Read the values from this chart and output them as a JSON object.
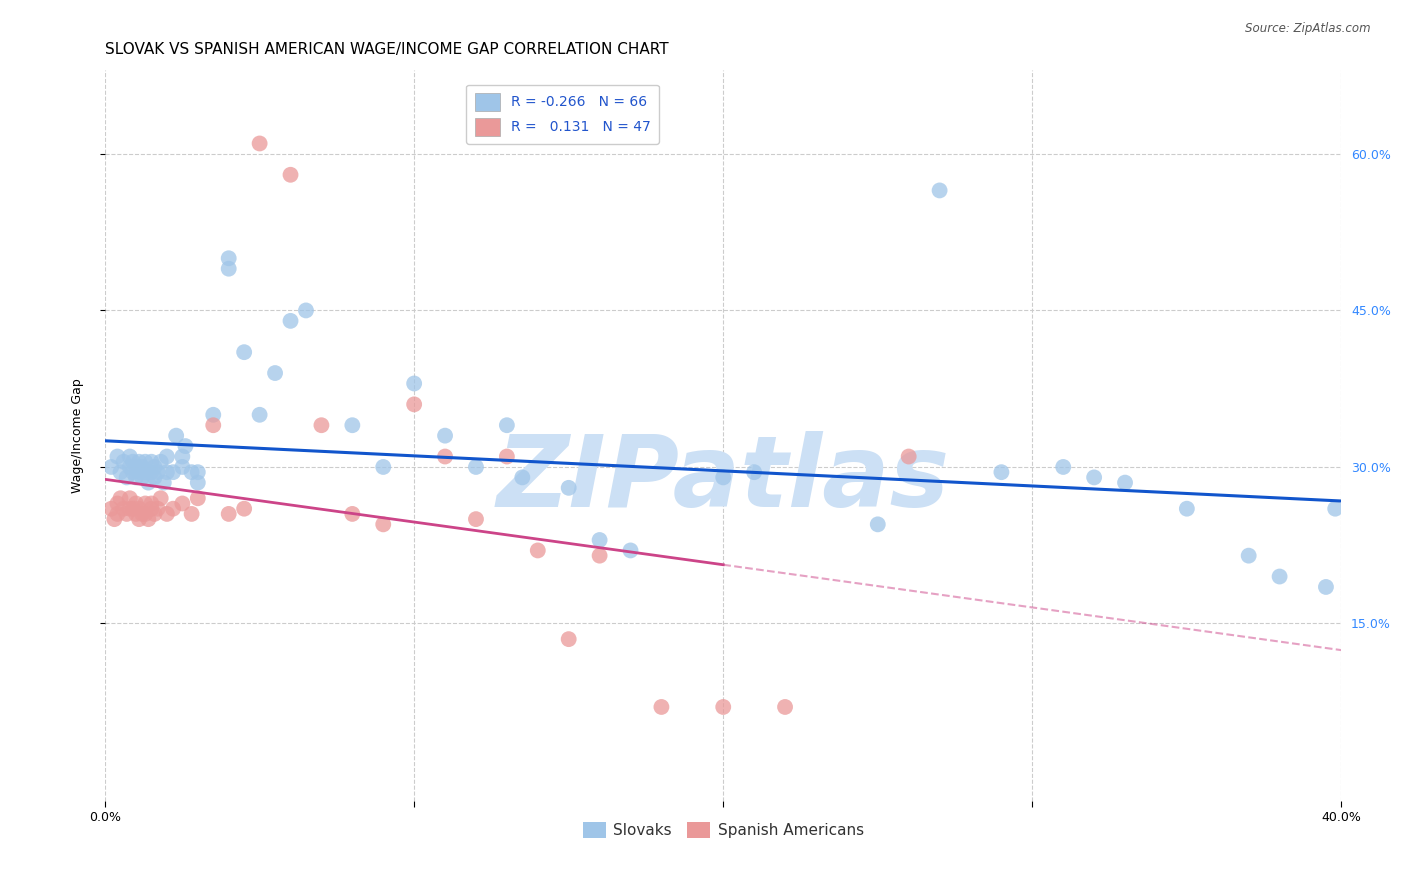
{
  "title": "SLOVAK VS SPANISH AMERICAN WAGE/INCOME GAP CORRELATION CHART",
  "source": "Source: ZipAtlas.com",
  "ylabel": "Wage/Income Gap",
  "xlim": [
    0.0,
    0.4
  ],
  "ylim": [
    -0.02,
    0.68
  ],
  "ytick_positions": [
    0.15,
    0.3,
    0.45,
    0.6
  ],
  "ytick_labels": [
    "15.0%",
    "30.0%",
    "45.0%",
    "60.0%"
  ],
  "blue_color": "#9fc5e8",
  "pink_color": "#ea9999",
  "blue_line_color": "#1155cc",
  "pink_line_color": "#cc4488",
  "pink_dash_color": "#cc4488",
  "background_color": "#ffffff",
  "grid_color": "#cccccc",
  "watermark_text": "ZIPatlas",
  "watermark_color": "#cce0f5",
  "title_fontsize": 11,
  "axis_label_fontsize": 9,
  "tick_fontsize": 9,
  "slovaks_x": [
    0.002,
    0.004,
    0.005,
    0.006,
    0.007,
    0.008,
    0.008,
    0.009,
    0.009,
    0.01,
    0.01,
    0.011,
    0.011,
    0.012,
    0.012,
    0.013,
    0.013,
    0.014,
    0.015,
    0.015,
    0.016,
    0.016,
    0.017,
    0.018,
    0.019,
    0.02,
    0.02,
    0.022,
    0.023,
    0.025,
    0.025,
    0.026,
    0.028,
    0.03,
    0.03,
    0.035,
    0.04,
    0.04,
    0.045,
    0.05,
    0.055,
    0.06,
    0.065,
    0.08,
    0.09,
    0.1,
    0.11,
    0.12,
    0.13,
    0.135,
    0.15,
    0.16,
    0.17,
    0.2,
    0.21,
    0.25,
    0.27,
    0.29,
    0.31,
    0.32,
    0.33,
    0.35,
    0.37,
    0.38,
    0.395,
    0.398
  ],
  "slovaks_y": [
    0.3,
    0.31,
    0.295,
    0.305,
    0.29,
    0.3,
    0.31,
    0.295,
    0.305,
    0.29,
    0.3,
    0.295,
    0.305,
    0.29,
    0.3,
    0.295,
    0.305,
    0.285,
    0.295,
    0.305,
    0.29,
    0.3,
    0.295,
    0.305,
    0.285,
    0.31,
    0.295,
    0.295,
    0.33,
    0.3,
    0.31,
    0.32,
    0.295,
    0.285,
    0.295,
    0.35,
    0.49,
    0.5,
    0.41,
    0.35,
    0.39,
    0.44,
    0.45,
    0.34,
    0.3,
    0.38,
    0.33,
    0.3,
    0.34,
    0.29,
    0.28,
    0.23,
    0.22,
    0.29,
    0.295,
    0.245,
    0.565,
    0.295,
    0.3,
    0.29,
    0.285,
    0.26,
    0.215,
    0.195,
    0.185,
    0.26
  ],
  "spanish_x": [
    0.002,
    0.003,
    0.004,
    0.004,
    0.005,
    0.006,
    0.007,
    0.008,
    0.008,
    0.009,
    0.01,
    0.01,
    0.011,
    0.011,
    0.012,
    0.013,
    0.013,
    0.014,
    0.015,
    0.015,
    0.016,
    0.017,
    0.018,
    0.02,
    0.022,
    0.025,
    0.028,
    0.03,
    0.035,
    0.04,
    0.045,
    0.05,
    0.06,
    0.07,
    0.08,
    0.09,
    0.1,
    0.11,
    0.12,
    0.13,
    0.14,
    0.15,
    0.16,
    0.18,
    0.2,
    0.22,
    0.26
  ],
  "spanish_y": [
    0.26,
    0.25,
    0.255,
    0.265,
    0.27,
    0.26,
    0.255,
    0.26,
    0.27,
    0.26,
    0.255,
    0.265,
    0.25,
    0.26,
    0.255,
    0.265,
    0.255,
    0.25,
    0.26,
    0.265,
    0.255,
    0.26,
    0.27,
    0.255,
    0.26,
    0.265,
    0.255,
    0.27,
    0.34,
    0.255,
    0.26,
    0.61,
    0.58,
    0.34,
    0.255,
    0.245,
    0.36,
    0.31,
    0.25,
    0.31,
    0.22,
    0.135,
    0.215,
    0.07,
    0.07,
    0.07,
    0.31
  ]
}
